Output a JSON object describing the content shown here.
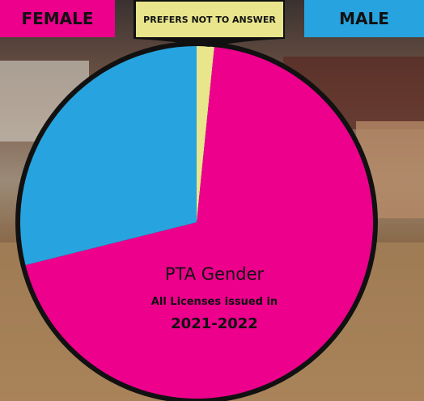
{
  "chart_data": {
    "type": "pie",
    "title": "PTA Gender",
    "subtitle": "All Licenses issued in",
    "period": "2021-2022",
    "categories": [
      "PREFERS NOT TO ANSWER",
      "FEMALE",
      "MALE"
    ],
    "values": [
      1.6,
      69.5,
      28.9
    ],
    "colors": [
      "#e8e58c",
      "#ec008c",
      "#27a4df"
    ]
  }
}
